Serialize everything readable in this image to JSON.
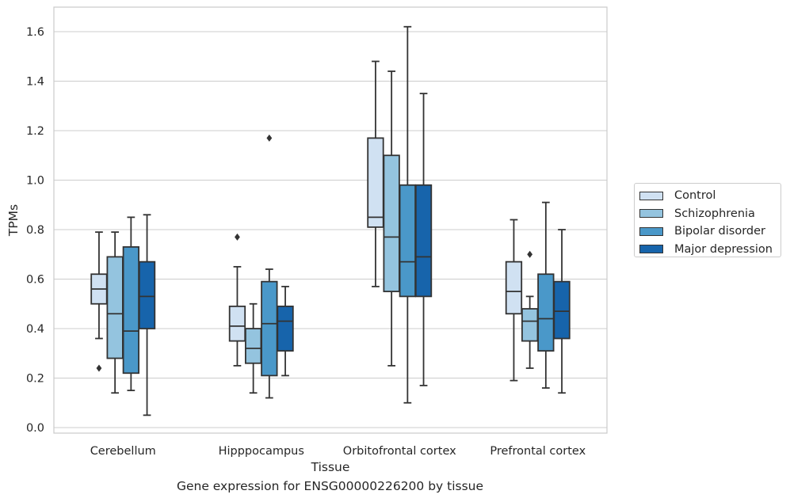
{
  "chart_data": {
    "type": "box",
    "title": "Gene expression for ENSG00000226200 by tissue",
    "xlabel": "Tissue",
    "ylabel": "TPMs",
    "ylim": [
      -0.02,
      1.7
    ],
    "yticks": [
      "0.0",
      "0.2",
      "0.4",
      "0.6",
      "0.8",
      "1.0",
      "1.2",
      "1.4",
      "1.6"
    ],
    "categories": [
      "Cerebellum",
      "Hipppocampus",
      "Orbitofrontal cortex",
      "Prefrontal cortex"
    ],
    "grid": true,
    "legend_position": "right",
    "series": [
      {
        "name": "Control",
        "color": "#d0e1f2",
        "boxes": [
          {
            "whislo": 0.36,
            "q1": 0.5,
            "med": 0.56,
            "q3": 0.62,
            "whishi": 0.79,
            "fliers": [
              0.24
            ]
          },
          {
            "whislo": 0.25,
            "q1": 0.35,
            "med": 0.41,
            "q3": 0.49,
            "whishi": 0.65,
            "fliers": [
              0.77
            ]
          },
          {
            "whislo": 0.57,
            "q1": 0.81,
            "med": 0.85,
            "q3": 1.17,
            "whishi": 1.48,
            "fliers": []
          },
          {
            "whislo": 0.19,
            "q1": 0.46,
            "med": 0.55,
            "q3": 0.67,
            "whishi": 0.84,
            "fliers": []
          }
        ]
      },
      {
        "name": "Schizophrenia",
        "color": "#94c4df",
        "boxes": [
          {
            "whislo": 0.14,
            "q1": 0.28,
            "med": 0.46,
            "q3": 0.69,
            "whishi": 0.79,
            "fliers": []
          },
          {
            "whislo": 0.14,
            "q1": 0.26,
            "med": 0.32,
            "q3": 0.4,
            "whishi": 0.5,
            "fliers": []
          },
          {
            "whislo": 0.25,
            "q1": 0.55,
            "med": 0.77,
            "q3": 1.1,
            "whishi": 1.44,
            "fliers": []
          },
          {
            "whislo": 0.24,
            "q1": 0.35,
            "med": 0.43,
            "q3": 0.48,
            "whishi": 0.53,
            "fliers": [
              0.7
            ]
          }
        ]
      },
      {
        "name": "Bipolar disorder",
        "color": "#4a98c9",
        "boxes": [
          {
            "whislo": 0.15,
            "q1": 0.22,
            "med": 0.39,
            "q3": 0.73,
            "whishi": 0.85,
            "fliers": []
          },
          {
            "whislo": 0.12,
            "q1": 0.21,
            "med": 0.42,
            "q3": 0.59,
            "whishi": 0.64,
            "fliers": [
              1.17
            ]
          },
          {
            "whislo": 0.1,
            "q1": 0.53,
            "med": 0.67,
            "q3": 0.98,
            "whishi": 1.62,
            "fliers": []
          },
          {
            "whislo": 0.16,
            "q1": 0.31,
            "med": 0.44,
            "q3": 0.62,
            "whishi": 0.91,
            "fliers": []
          }
        ]
      },
      {
        "name": "Major depression",
        "color": "#1764ab",
        "boxes": [
          {
            "whislo": 0.05,
            "q1": 0.4,
            "med": 0.53,
            "q3": 0.67,
            "whishi": 0.86,
            "fliers": []
          },
          {
            "whislo": 0.21,
            "q1": 0.31,
            "med": 0.43,
            "q3": 0.49,
            "whishi": 0.57,
            "fliers": []
          },
          {
            "whislo": 0.17,
            "q1": 0.53,
            "med": 0.69,
            "q3": 0.98,
            "whishi": 1.35,
            "fliers": []
          },
          {
            "whislo": 0.14,
            "q1": 0.36,
            "med": 0.47,
            "q3": 0.59,
            "whishi": 0.8,
            "fliers": []
          }
        ]
      }
    ]
  }
}
